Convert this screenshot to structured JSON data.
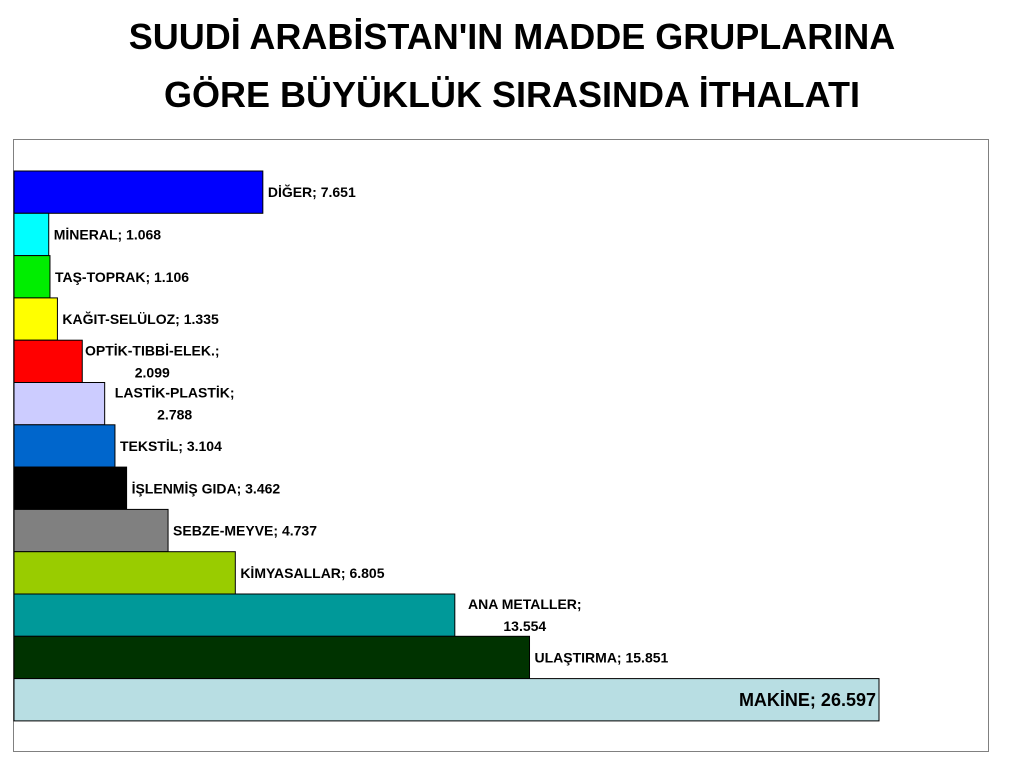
{
  "title_line1": "SUUDİ ARABİSTAN'IN MADDE GRUPLARINA",
  "title_line2": "GÖRE BÜYÜKLÜK SIRASINDA İTHALATI",
  "chart_data": {
    "type": "bar",
    "orientation": "horizontal",
    "title": "SUUDİ ARABİSTAN'IN MADDE GRUPLARINA GÖRE BÜYÜKLÜK SIRASINDA İTHALATI",
    "xlabel": "",
    "ylabel": "",
    "grid": false,
    "legend": "none",
    "xlim": [
      0,
      26.597
    ],
    "categories": [
      "DİĞER",
      "MİNERAL",
      "TAŞ-TOPRAK",
      "KAĞIT-SELÜLOZ",
      "OPTİK-TIBBİ-ELEK.",
      "LASTİK-PLASTİK",
      "TEKSTİL",
      "İŞLENMİŞ GIDA",
      "SEBZE-MEYVE",
      "KİMYASALLAR",
      "ANA METALLER",
      "ULAŞTIRMA",
      "MAKİNE"
    ],
    "values": [
      7.651,
      1.068,
      1.106,
      1.335,
      2.099,
      2.788,
      3.104,
      3.462,
      4.737,
      6.805,
      13.554,
      15.851,
      26.597
    ],
    "bars": [
      {
        "category": "DİĞER",
        "value": 7.651,
        "label": [
          "DİĞER; 7.651"
        ],
        "color": "#0000FF"
      },
      {
        "category": "MİNERAL",
        "value": 1.068,
        "label": [
          "MİNERAL; 1.068"
        ],
        "color": "#00FFFF"
      },
      {
        "category": "TAŞ-TOPRAK",
        "value": 1.106,
        "label": [
          "TAŞ-TOPRAK; 1.106"
        ],
        "color": "#00EE00"
      },
      {
        "category": "KAĞIT-SELÜLOZ",
        "value": 1.335,
        "label": [
          "KAĞIT-SELÜLOZ; 1.335"
        ],
        "color": "#FFFF00"
      },
      {
        "category": "OPTİK-TIBBİ-ELEK.",
        "value": 2.099,
        "label": [
          "OPTİK-TIBBİ-ELEK.;",
          "2.099"
        ],
        "color": "#FF0000"
      },
      {
        "category": "LASTİK-PLASTİK",
        "value": 2.788,
        "label": [
          "LASTİK-PLASTİK;",
          "2.788"
        ],
        "color": "#CCCCFF"
      },
      {
        "category": "TEKSTİL",
        "value": 3.104,
        "label": [
          "TEKSTİL; 3.104"
        ],
        "color": "#0066CC"
      },
      {
        "category": "İŞLENMİŞ GIDA",
        "value": 3.462,
        "label": [
          "İŞLENMİŞ GIDA; 3.462"
        ],
        "color": "#000000"
      },
      {
        "category": "SEBZE-MEYVE",
        "value": 4.737,
        "label": [
          "SEBZE-MEYVE; 4.737"
        ],
        "color": "#808080"
      },
      {
        "category": "KİMYASALLAR",
        "value": 6.805,
        "label": [
          "KİMYASALLAR; 6.805"
        ],
        "color": "#99CC00"
      },
      {
        "category": "ANA METALLER",
        "value": 13.554,
        "label": [
          "ANA METALLER;",
          "13.554"
        ],
        "color": "#009999"
      },
      {
        "category": "ULAŞTIRMA",
        "value": 15.851,
        "label": [
          "ULAŞTIRMA; 15.851"
        ],
        "color": "#003300"
      },
      {
        "category": "MAKİNE",
        "value": 26.597,
        "label": [
          "MAKİNE; 26.597"
        ],
        "color": "#B8DEE3"
      }
    ]
  }
}
